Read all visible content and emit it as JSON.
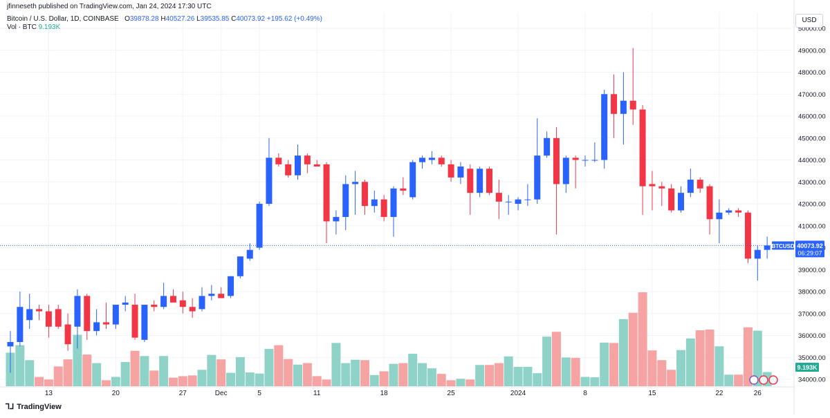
{
  "header": {
    "published": "jfinneseth published on TradingView.com, Jan 24, 2024 17:30 UTC",
    "symbol_desc": "Bitcoin / U.S. Dollar, 1D, COINBASE",
    "ohlc": {
      "o_label": "O",
      "o": "39878.28",
      "h_label": "H",
      "h": "40527.26",
      "l_label": "L",
      "l": "39535.85",
      "c_label": "C",
      "c": "40073.92",
      "change": "+195.62 (+0.49%)"
    },
    "vol_label": "Vol · BTC",
    "vol_value": "9.193K"
  },
  "currency": "USD",
  "brand": "TradingView",
  "colors": {
    "up": "#2962ff",
    "down": "#f23645",
    "vol_up": "#8fd3c8",
    "vol_down": "#f5a3a3",
    "grid": "#f0f3fa"
  },
  "price_tag": {
    "symbol": "BTCUSD",
    "price": "40073.92",
    "countdown": "06:29:07"
  },
  "vol_tag": "9.193K",
  "chart_data": {
    "type": "candlestick",
    "symbol": "BTCUSD",
    "exchange": "COINBASE",
    "interval": "1D",
    "ylim": [
      33500,
      50300
    ],
    "y_ticks": [
      "34000.00",
      "35000.00",
      "36000.00",
      "37000.00",
      "38000.00",
      "39000.00",
      "40000.00",
      "41000.00",
      "42000.00",
      "43000.00",
      "44000.00",
      "45000.00",
      "46000.00",
      "47000.00",
      "48000.00",
      "49000.00",
      "50000.00"
    ],
    "x_ticks": [
      {
        "label": "13",
        "index": 4
      },
      {
        "label": "20",
        "index": 11
      },
      {
        "label": "27",
        "index": 18
      },
      {
        "label": "Dec",
        "index": 22
      },
      {
        "label": "5",
        "index": 26
      },
      {
        "label": "11",
        "index": 32
      },
      {
        "label": "18",
        "index": 39
      },
      {
        "label": "25",
        "index": 46
      },
      {
        "label": "2024",
        "index": 53
      },
      {
        "label": "8",
        "index": 60
      },
      {
        "label": "15",
        "index": 67
      },
      {
        "label": "22",
        "index": 74
      },
      {
        "label": "26",
        "index": 78
      }
    ],
    "candles": [
      {
        "o": 35500,
        "h": 36200,
        "l": 34300,
        "c": 35700,
        "v": 900
      },
      {
        "o": 35700,
        "h": 38000,
        "l": 35500,
        "c": 37300,
        "v": 1100
      },
      {
        "o": 36700,
        "h": 37900,
        "l": 36300,
        "c": 37200,
        "v": 700
      },
      {
        "o": 37200,
        "h": 37400,
        "l": 36700,
        "c": 37100,
        "v": 250
      },
      {
        "o": 37100,
        "h": 37400,
        "l": 35900,
        "c": 36400,
        "v": 180
      },
      {
        "o": 37200,
        "h": 37400,
        "l": 36300,
        "c": 36400,
        "v": 530
      },
      {
        "o": 36500,
        "h": 37000,
        "l": 35300,
        "c": 35600,
        "v": 720
      },
      {
        "o": 36400,
        "h": 38100,
        "l": 35400,
        "c": 37800,
        "v": 1380
      },
      {
        "o": 37800,
        "h": 37900,
        "l": 35800,
        "c": 36200,
        "v": 850
      },
      {
        "o": 36200,
        "h": 37200,
        "l": 36000,
        "c": 36600,
        "v": 620
      },
      {
        "o": 36600,
        "h": 37500,
        "l": 36300,
        "c": 36500,
        "v": 160
      },
      {
        "o": 36500,
        "h": 37400,
        "l": 36300,
        "c": 37400,
        "v": 250
      },
      {
        "o": 37400,
        "h": 37800,
        "l": 37100,
        "c": 37500,
        "v": 650
      },
      {
        "o": 37400,
        "h": 37900,
        "l": 35800,
        "c": 35900,
        "v": 950
      },
      {
        "o": 35800,
        "h": 37400,
        "l": 35700,
        "c": 37400,
        "v": 810
      },
      {
        "o": 37400,
        "h": 37600,
        "l": 37100,
        "c": 37300,
        "v": 420
      },
      {
        "o": 37300,
        "h": 38400,
        "l": 37200,
        "c": 37800,
        "v": 810
      },
      {
        "o": 37800,
        "h": 38100,
        "l": 37600,
        "c": 37500,
        "v": 230
      },
      {
        "o": 37600,
        "h": 38000,
        "l": 37000,
        "c": 37300,
        "v": 270
      },
      {
        "o": 37300,
        "h": 37700,
        "l": 36800,
        "c": 37100,
        "v": 290
      },
      {
        "o": 37200,
        "h": 38200,
        "l": 37100,
        "c": 37800,
        "v": 440
      },
      {
        "o": 37800,
        "h": 38300,
        "l": 37600,
        "c": 37900,
        "v": 840
      },
      {
        "o": 37900,
        "h": 38200,
        "l": 37700,
        "c": 37700,
        "v": 720
      },
      {
        "o": 37800,
        "h": 38700,
        "l": 37700,
        "c": 38700,
        "v": 360
      },
      {
        "o": 38700,
        "h": 39600,
        "l": 38600,
        "c": 39600,
        "v": 780
      },
      {
        "o": 39500,
        "h": 40200,
        "l": 39400,
        "c": 39900,
        "v": 370
      },
      {
        "o": 40000,
        "h": 42100,
        "l": 39900,
        "c": 42000,
        "v": 340
      },
      {
        "o": 42000,
        "h": 45000,
        "l": 41900,
        "c": 44100,
        "v": 1000
      },
      {
        "o": 44100,
        "h": 44300,
        "l": 43700,
        "c": 43800,
        "v": 1100
      },
      {
        "o": 43800,
        "h": 44000,
        "l": 43200,
        "c": 43300,
        "v": 730
      },
      {
        "o": 43300,
        "h": 44700,
        "l": 43100,
        "c": 44200,
        "v": 580
      },
      {
        "o": 44200,
        "h": 44300,
        "l": 43400,
        "c": 43800,
        "v": 620
      },
      {
        "o": 43800,
        "h": 44000,
        "l": 43700,
        "c": 43700,
        "v": 270
      },
      {
        "o": 43800,
        "h": 43900,
        "l": 40200,
        "c": 41200,
        "v": 180
      },
      {
        "o": 41200,
        "h": 41700,
        "l": 40600,
        "c": 41400,
        "v": 1160
      },
      {
        "o": 41400,
        "h": 43300,
        "l": 40800,
        "c": 42900,
        "v": 620
      },
      {
        "o": 42900,
        "h": 43500,
        "l": 41500,
        "c": 43000,
        "v": 710
      },
      {
        "o": 43000,
        "h": 43100,
        "l": 41500,
        "c": 41900,
        "v": 700
      },
      {
        "o": 41900,
        "h": 42600,
        "l": 41600,
        "c": 42200,
        "v": 300
      },
      {
        "o": 42200,
        "h": 42400,
        "l": 41200,
        "c": 41400,
        "v": 400
      },
      {
        "o": 41400,
        "h": 42800,
        "l": 40500,
        "c": 42700,
        "v": 600
      },
      {
        "o": 42700,
        "h": 43200,
        "l": 42400,
        "c": 42600,
        "v": 620
      },
      {
        "o": 42300,
        "h": 44000,
        "l": 42200,
        "c": 43900,
        "v": 870
      },
      {
        "o": 43900,
        "h": 44200,
        "l": 43600,
        "c": 44100,
        "v": 620
      },
      {
        "o": 44000,
        "h": 44400,
        "l": 43800,
        "c": 44100,
        "v": 480
      },
      {
        "o": 44100,
        "h": 44200,
        "l": 43700,
        "c": 43800,
        "v": 330
      },
      {
        "o": 43800,
        "h": 44000,
        "l": 43000,
        "c": 43200,
        "v": 160
      },
      {
        "o": 43200,
        "h": 43900,
        "l": 42900,
        "c": 43700,
        "v": 200
      },
      {
        "o": 43600,
        "h": 43800,
        "l": 41500,
        "c": 42500,
        "v": 180
      },
      {
        "o": 42500,
        "h": 43700,
        "l": 42300,
        "c": 43600,
        "v": 570
      },
      {
        "o": 43600,
        "h": 43700,
        "l": 42400,
        "c": 42500,
        "v": 570
      },
      {
        "o": 42500,
        "h": 43100,
        "l": 41300,
        "c": 42100,
        "v": 620
      },
      {
        "o": 42100,
        "h": 42400,
        "l": 41500,
        "c": 42100,
        "v": 800
      },
      {
        "o": 42000,
        "h": 42300,
        "l": 41700,
        "c": 42200,
        "v": 520
      },
      {
        "o": 42200,
        "h": 42900,
        "l": 41900,
        "c": 42200,
        "v": 520
      },
      {
        "o": 42200,
        "h": 45900,
        "l": 42000,
        "c": 44200,
        "v": 350
      },
      {
        "o": 44200,
        "h": 45300,
        "l": 44100,
        "c": 45000,
        "v": 1330
      },
      {
        "o": 45000,
        "h": 45500,
        "l": 40600,
        "c": 42900,
        "v": 1460
      },
      {
        "o": 42900,
        "h": 44200,
        "l": 42500,
        "c": 44100,
        "v": 770
      },
      {
        "o": 44100,
        "h": 44200,
        "l": 42700,
        "c": 44000,
        "v": 760
      },
      {
        "o": 44000,
        "h": 44200,
        "l": 43700,
        "c": 44000,
        "v": 250
      },
      {
        "o": 44000,
        "h": 44800,
        "l": 43900,
        "c": 44000,
        "v": 240
      },
      {
        "o": 44000,
        "h": 47200,
        "l": 43600,
        "c": 47000,
        "v": 1170
      },
      {
        "o": 47000,
        "h": 47900,
        "l": 45000,
        "c": 46100,
        "v": 1160
      },
      {
        "o": 46100,
        "h": 48000,
        "l": 44700,
        "c": 46700,
        "v": 1800
      },
      {
        "o": 46700,
        "h": 49100,
        "l": 45600,
        "c": 46300,
        "v": 1970
      },
      {
        "o": 46300,
        "h": 46500,
        "l": 41500,
        "c": 42800,
        "v": 2520
      },
      {
        "o": 42900,
        "h": 43500,
        "l": 41700,
        "c": 42800,
        "v": 960
      },
      {
        "o": 42800,
        "h": 43000,
        "l": 41900,
        "c": 42700,
        "v": 700
      },
      {
        "o": 42700,
        "h": 42900,
        "l": 41600,
        "c": 41700,
        "v": 440
      },
      {
        "o": 41700,
        "h": 42800,
        "l": 41600,
        "c": 42500,
        "v": 970
      },
      {
        "o": 42500,
        "h": 43600,
        "l": 42300,
        "c": 43100,
        "v": 1280
      },
      {
        "o": 43100,
        "h": 43200,
        "l": 42500,
        "c": 42700,
        "v": 1500
      },
      {
        "o": 42800,
        "h": 42900,
        "l": 40600,
        "c": 41300,
        "v": 1520
      },
      {
        "o": 41300,
        "h": 42200,
        "l": 40200,
        "c": 41600,
        "v": 1070
      },
      {
        "o": 41600,
        "h": 41800,
        "l": 41500,
        "c": 41700,
        "v": 310
      },
      {
        "o": 41700,
        "h": 41800,
        "l": 41400,
        "c": 41600,
        "v": 310
      },
      {
        "o": 41600,
        "h": 41700,
        "l": 39300,
        "c": 39500,
        "v": 1580
      },
      {
        "o": 39500,
        "h": 40100,
        "l": 38500,
        "c": 39900,
        "v": 1490
      },
      {
        "o": 39900,
        "h": 40500,
        "l": 39500,
        "c": 40100,
        "v": 380
      }
    ]
  }
}
